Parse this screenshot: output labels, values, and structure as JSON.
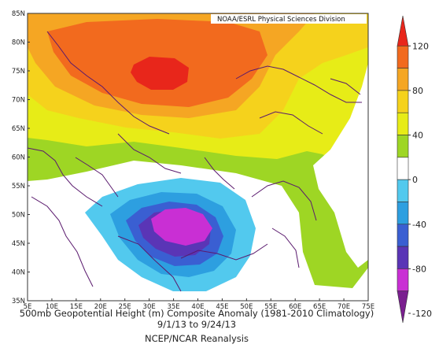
{
  "map": {
    "credit": "NOAA/ESRL Physical Sciences Division",
    "lat_labels": [
      "85N",
      "80N",
      "75N",
      "70N",
      "65N",
      "60N",
      "55N",
      "50N",
      "45N",
      "40N",
      "35N"
    ],
    "lon_labels": [
      "5E",
      "10E",
      "15E",
      "20E",
      "25E",
      "30E",
      "35E",
      "40E",
      "45E",
      "50E",
      "55E",
      "60E",
      "65E",
      "70E",
      "75E"
    ],
    "extent": {
      "lon_min": 5,
      "lon_max": 75,
      "lat_min": 35,
      "lat_max": 85
    },
    "coastline_color": "#5a1a6e",
    "contours": [
      {
        "level": "120",
        "color": "#e8261b"
      },
      {
        "level": "80-120",
        "color": "#f26a1e"
      },
      {
        "level": "80",
        "color": "#f5a623"
      },
      {
        "level": "60",
        "color": "#f5d21c"
      },
      {
        "level": "40",
        "color": "#e7ec17"
      },
      {
        "level": "20",
        "color": "#9ed624"
      },
      {
        "level": "-20",
        "color": "#52c9ee"
      },
      {
        "level": "-40",
        "color": "#2d9fe0"
      },
      {
        "level": "-60",
        "color": "#3a5fd2"
      },
      {
        "level": "-80",
        "color": "#5a35b6"
      },
      {
        "level": "-100",
        "color": "#c92fd4"
      }
    ]
  },
  "caption": {
    "line1": "500mb Geopotential Height (m) Composite Anomaly (1981-2010 Climatology)",
    "line2": "9/1/13 to 9/24/13",
    "line3": "NCEP/NCAR Reanalysis"
  },
  "colorbar": {
    "labels": [
      "120",
      "80",
      "40",
      "0",
      "-40",
      "-80",
      "-120"
    ],
    "colors": [
      "#e8261b",
      "#f26a1e",
      "#f5a623",
      "#f5d21c",
      "#e7ec17",
      "#9ed624",
      "#ffffff",
      "#52c9ee",
      "#2d9fe0",
      "#3a5fd2",
      "#5a35b6",
      "#c92fd4",
      "#7a1f8f"
    ]
  }
}
